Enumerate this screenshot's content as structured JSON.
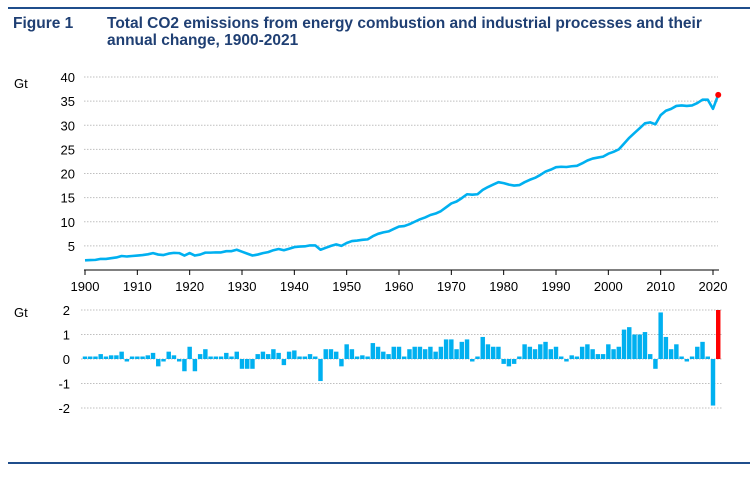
{
  "figure_label": "Figure 1",
  "title": "Total CO2 emissions from energy combustion and industrial processes and their annual change, 1900-2021",
  "colors": {
    "series": "#00b0f0",
    "highlight": "#ff0000",
    "title": "#1f3f73",
    "rule": "#1f4e8c",
    "grid": "#bfbfbf"
  },
  "chart_data": [
    {
      "type": "line",
      "ylabel": "Gt",
      "ylim": [
        0,
        40
      ],
      "yticks": [
        "5",
        "10",
        "15",
        "20",
        "25",
        "30",
        "35",
        "40"
      ],
      "xlim": [
        1900,
        2021
      ],
      "xticks": [
        "1900",
        "1910",
        "1920",
        "1930",
        "1940",
        "1950",
        "1960",
        "1970",
        "1980",
        "1990",
        "2000",
        "2010",
        "2020"
      ],
      "grid": true,
      "highlight_point": {
        "x": 2021,
        "y": 36.3
      },
      "x_start": 1900,
      "values": [
        2.0,
        2.05,
        2.1,
        2.3,
        2.3,
        2.45,
        2.6,
        2.9,
        2.8,
        2.9,
        3.0,
        3.1,
        3.25,
        3.5,
        3.2,
        3.1,
        3.4,
        3.55,
        3.5,
        3.0,
        3.5,
        3.0,
        3.2,
        3.6,
        3.6,
        3.65,
        3.65,
        3.9,
        3.9,
        4.2,
        3.8,
        3.4,
        3.0,
        3.2,
        3.5,
        3.7,
        4.1,
        4.35,
        4.1,
        4.4,
        4.75,
        4.85,
        4.9,
        5.1,
        5.1,
        4.2,
        4.6,
        5.0,
        5.3,
        5.0,
        5.6,
        6.0,
        6.1,
        6.25,
        6.35,
        7.0,
        7.5,
        7.8,
        8.0,
        8.5,
        9.0,
        9.1,
        9.5,
        10.0,
        10.5,
        10.9,
        11.4,
        11.7,
        12.2,
        13.0,
        13.8,
        14.2,
        14.9,
        15.7,
        15.6,
        15.7,
        16.6,
        17.2,
        17.7,
        18.2,
        18.0,
        17.7,
        17.5,
        17.6,
        18.2,
        18.7,
        19.1,
        19.7,
        20.4,
        20.8,
        21.3,
        21.4,
        21.35,
        21.5,
        21.6,
        22.1,
        22.7,
        23.1,
        23.3,
        23.5,
        24.1,
        24.5,
        25.0,
        26.2,
        27.4,
        28.4,
        29.4,
        30.4,
        30.6,
        30.2,
        32.1,
        33.0,
        33.4,
        34.0,
        34.1,
        34.0,
        34.1,
        34.6,
        35.3,
        35.3,
        33.4,
        36.3
      ]
    },
    {
      "type": "bar",
      "ylabel": "Gt",
      "ylim": [
        -2,
        2
      ],
      "yticks": [
        "2",
        "1",
        "0",
        "-1",
        "-2"
      ],
      "grid": true,
      "highlight_bar": 2021,
      "x_start": 1900,
      "values": [
        0.1,
        0.05,
        0.05,
        0.2,
        0,
        0.15,
        0.15,
        0.3,
        -0.1,
        0.1,
        0.1,
        0.1,
        0.15,
        0.25,
        -0.3,
        -0.1,
        0.3,
        0.15,
        -0.05,
        -0.5,
        0.5,
        -0.5,
        0.2,
        0.4,
        0,
        0.05,
        0,
        0.25,
        0,
        0.3,
        -0.4,
        -0.4,
        -0.4,
        0.2,
        0.3,
        0.2,
        0.4,
        0.25,
        -0.25,
        0.3,
        0.35,
        0.1,
        0.05,
        0.2,
        0,
        -0.9,
        0.4,
        0.4,
        0.3,
        -0.3,
        0.6,
        0.4,
        0.1,
        0.15,
        0.1,
        0.65,
        0.5,
        0.3,
        0.2,
        0.5,
        0.5,
        0.1,
        0.4,
        0.5,
        0.5,
        0.4,
        0.5,
        0.3,
        0.5,
        0.8,
        0.8,
        0.4,
        0.7,
        0.8,
        -0.1,
        0.1,
        0.9,
        0.6,
        0.5,
        0.5,
        -0.2,
        -0.3,
        -0.2,
        0.1,
        0.6,
        0.5,
        0.4,
        0.6,
        0.7,
        0.4,
        0.5,
        0.1,
        -0.05,
        0.15,
        0.1,
        0.5,
        0.6,
        0.4,
        0.2,
        0.2,
        0.6,
        0.4,
        0.5,
        1.2,
        1.3,
        1.0,
        1.0,
        1.1,
        0.2,
        -0.4,
        1.9,
        0.9,
        0.4,
        0.6,
        0.1,
        -0.1,
        0.1,
        0.5,
        0.7,
        0.0,
        -1.9,
        2.0
      ]
    }
  ]
}
